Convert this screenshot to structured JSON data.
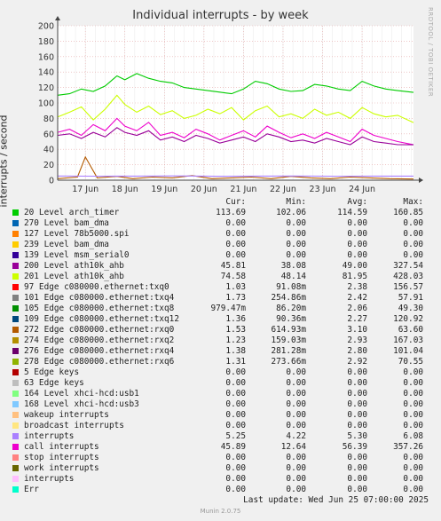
{
  "title": "Individual interrupts - by week",
  "ylabel": "interrupts / second",
  "watermark": "RRDTOOL / TOBI OETIKER",
  "footer": {
    "last_update": "Last update:  Wed Jun 25 07:00:00 2025",
    "version": "Munin 2.0.75"
  },
  "legend_headers": {
    "cur": "Cur:",
    "min": "Min:",
    "avg": "Avg:",
    "max": "Max:"
  },
  "legend": [
    {
      "name": "20 Level arch_timer",
      "color": "#00cc00",
      "cur": "113.69",
      "min": "102.06",
      "avg": "114.59",
      "max": "160.85"
    },
    {
      "name": "270 Level bam_dma",
      "color": "#0066b3",
      "cur": "0.00",
      "min": "0.00",
      "avg": "0.00",
      "max": "0.00"
    },
    {
      "name": "127 Level 78b5000.spi",
      "color": "#ff8000",
      "cur": "0.00",
      "min": "0.00",
      "avg": "0.00",
      "max": "0.00"
    },
    {
      "name": "239 Level bam_dma",
      "color": "#ffcc00",
      "cur": "0.00",
      "min": "0.00",
      "avg": "0.00",
      "max": "0.00"
    },
    {
      "name": "139 Level msm_serial0",
      "color": "#330099",
      "cur": "0.00",
      "min": "0.00",
      "avg": "0.00",
      "max": "0.00"
    },
    {
      "name": "200 Level ath10k_ahb",
      "color": "#990099",
      "cur": "45.81",
      "min": "38.08",
      "avg": "49.00",
      "max": "327.54"
    },
    {
      "name": "201 Level ath10k_ahb",
      "color": "#ccff00",
      "cur": "74.58",
      "min": "48.14",
      "avg": "81.95",
      "max": "428.03"
    },
    {
      "name": "97 Edge c080000.ethernet:txq0",
      "color": "#ff0000",
      "cur": "1.03",
      "min": "91.08m",
      "avg": "2.38",
      "max": "156.57"
    },
    {
      "name": "101 Edge c080000.ethernet:txq4",
      "color": "#808080",
      "cur": "1.73",
      "min": "254.86m",
      "avg": "2.42",
      "max": "57.91"
    },
    {
      "name": "105 Edge c080000.ethernet:txq8",
      "color": "#008f00",
      "cur": "979.47m",
      "min": "86.20m",
      "avg": "2.06",
      "max": "49.30"
    },
    {
      "name": "109 Edge c080000.ethernet:txq12",
      "color": "#00487d",
      "cur": "1.36",
      "min": "90.36m",
      "avg": "2.27",
      "max": "120.92"
    },
    {
      "name": "272 Edge c080000.ethernet:rxq0",
      "color": "#b35a00",
      "cur": "1.53",
      "min": "614.93m",
      "avg": "3.10",
      "max": "63.60"
    },
    {
      "name": "274 Edge c080000.ethernet:rxq2",
      "color": "#b38f00",
      "cur": "1.23",
      "min": "159.03m",
      "avg": "2.93",
      "max": "167.03"
    },
    {
      "name": "276 Edge c080000.ethernet:rxq4",
      "color": "#6b006b",
      "cur": "1.38",
      "min": "281.28m",
      "avg": "2.80",
      "max": "101.04"
    },
    {
      "name": "278 Edge c080000.ethernet:rxq6",
      "color": "#8fb300",
      "cur": "1.31",
      "min": "273.66m",
      "avg": "2.92",
      "max": "70.55"
    },
    {
      "name": "5 Edge keys",
      "color": "#b30000",
      "cur": "0.00",
      "min": "0.00",
      "avg": "0.00",
      "max": "0.00"
    },
    {
      "name": "63 Edge keys",
      "color": "#bebebe",
      "cur": "0.00",
      "min": "0.00",
      "avg": "0.00",
      "max": "0.00"
    },
    {
      "name": "164 Level xhci-hcd:usb1",
      "color": "#80ff80",
      "cur": "0.00",
      "min": "0.00",
      "avg": "0.00",
      "max": "0.00"
    },
    {
      "name": "168 Level xhci-hcd:usb3",
      "color": "#80c9ff",
      "cur": "0.00",
      "min": "0.00",
      "avg": "0.00",
      "max": "0.00"
    },
    {
      "name": "wakeup interrupts",
      "color": "#ffc080",
      "cur": "0.00",
      "min": "0.00",
      "avg": "0.00",
      "max": "0.00"
    },
    {
      "name": "broadcast interrupts",
      "color": "#ffe680",
      "cur": "0.00",
      "min": "0.00",
      "avg": "0.00",
      "max": "0.00"
    },
    {
      "name": "interrupts",
      "color": "#aa80ff",
      "cur": "5.25",
      "min": "4.22",
      "avg": "5.30",
      "max": "6.08"
    },
    {
      "name": "call interrupts",
      "color": "#ee00cc",
      "cur": "45.89",
      "min": "12.64",
      "avg": "56.39",
      "max": "357.26"
    },
    {
      "name": "stop interrupts",
      "color": "#ff8080",
      "cur": "0.00",
      "min": "0.00",
      "avg": "0.00",
      "max": "0.00"
    },
    {
      "name": "work interrupts",
      "color": "#666600",
      "cur": "0.00",
      "min": "0.00",
      "avg": "0.00",
      "max": "0.00"
    },
    {
      "name": "interrupts",
      "color": "#ffbfff",
      "cur": "0.00",
      "min": "0.00",
      "avg": "0.00",
      "max": "0.00"
    },
    {
      "name": "Err",
      "color": "#00ffcc",
      "cur": "0.00",
      "min": "0.00",
      "avg": "0.00",
      "max": "0.00"
    }
  ],
  "chart_data": {
    "type": "line",
    "title": "Individual interrupts - by week",
    "ylabel": "interrupts / second",
    "xlabel": "",
    "ylim": [
      0,
      200
    ],
    "yticks": [
      0,
      20,
      40,
      60,
      80,
      100,
      120,
      140,
      160,
      180,
      200
    ],
    "xticks": [
      "17 Jun",
      "18 Jun",
      "19 Jun",
      "20 Jun",
      "21 Jun",
      "22 Jun",
      "23 Jun",
      "24 Jun"
    ],
    "xlim_days": [
      16.3,
      25.3
    ],
    "grid": true,
    "series": [
      {
        "name": "20 Level arch_timer",
        "color": "#00cc00",
        "x": [
          16.3,
          16.6,
          16.9,
          17.2,
          17.5,
          17.8,
          18.0,
          18.3,
          18.6,
          18.9,
          19.2,
          19.5,
          19.8,
          20.1,
          20.4,
          20.7,
          21.0,
          21.3,
          21.6,
          21.9,
          22.2,
          22.5,
          22.8,
          23.1,
          23.4,
          23.7,
          24.0,
          24.3,
          24.6,
          24.9,
          25.3
        ],
        "y": [
          110,
          112,
          118,
          115,
          122,
          135,
          130,
          138,
          132,
          128,
          126,
          120,
          118,
          116,
          114,
          112,
          118,
          128,
          125,
          118,
          115,
          116,
          124,
          122,
          118,
          116,
          128,
          122,
          118,
          116,
          113.69
        ]
      },
      {
        "name": "201 Level ath10k_ahb",
        "color": "#ccff00",
        "x": [
          16.3,
          16.6,
          16.9,
          17.2,
          17.5,
          17.8,
          18.0,
          18.3,
          18.6,
          18.9,
          19.2,
          19.5,
          19.8,
          20.1,
          20.4,
          20.7,
          21.0,
          21.3,
          21.6,
          21.9,
          22.2,
          22.5,
          22.8,
          23.1,
          23.4,
          23.7,
          24.0,
          24.3,
          24.6,
          24.9,
          25.3
        ],
        "y": [
          82,
          88,
          95,
          78,
          92,
          110,
          98,
          88,
          96,
          85,
          90,
          80,
          84,
          92,
          86,
          94,
          78,
          90,
          96,
          82,
          86,
          80,
          92,
          84,
          88,
          80,
          94,
          86,
          82,
          84,
          74.58
        ]
      },
      {
        "name": "call interrupts",
        "color": "#ee00cc",
        "x": [
          16.3,
          16.6,
          16.9,
          17.2,
          17.5,
          17.8,
          18.0,
          18.3,
          18.6,
          18.9,
          19.2,
          19.5,
          19.8,
          20.1,
          20.4,
          20.7,
          21.0,
          21.3,
          21.6,
          21.9,
          22.2,
          22.5,
          22.8,
          23.1,
          23.4,
          23.7,
          24.0,
          24.3,
          24.6,
          24.9,
          25.3
        ],
        "y": [
          62,
          66,
          58,
          72,
          64,
          80,
          70,
          64,
          75,
          58,
          62,
          55,
          66,
          60,
          52,
          58,
          64,
          56,
          70,
          62,
          55,
          60,
          54,
          62,
          56,
          50,
          66,
          58,
          54,
          50,
          45.89
        ]
      },
      {
        "name": "200 Level ath10k_ahb",
        "color": "#990099",
        "x": [
          16.3,
          16.6,
          16.9,
          17.2,
          17.5,
          17.8,
          18.0,
          18.3,
          18.6,
          18.9,
          19.2,
          19.5,
          19.8,
          20.1,
          20.4,
          20.7,
          21.0,
          21.3,
          21.6,
          21.9,
          22.2,
          22.5,
          22.8,
          23.1,
          23.4,
          23.7,
          24.0,
          24.3,
          24.6,
          24.9,
          25.3
        ],
        "y": [
          58,
          60,
          54,
          62,
          56,
          68,
          62,
          58,
          64,
          52,
          56,
          50,
          58,
          54,
          48,
          52,
          56,
          50,
          60,
          56,
          50,
          52,
          48,
          54,
          50,
          46,
          56,
          50,
          48,
          46,
          45.81
        ]
      },
      {
        "name": "272 Edge c080000.ethernet:rxq0",
        "color": "#b35a00",
        "x": [
          16.3,
          16.8,
          17.0,
          17.3,
          17.8,
          18.2,
          18.7,
          19.2,
          19.7,
          20.2,
          20.7,
          21.2,
          21.7,
          22.2,
          22.7,
          23.2,
          23.7,
          24.2,
          24.7,
          25.3
        ],
        "y": [
          2,
          4,
          30,
          3,
          5,
          2,
          4,
          3,
          6,
          2,
          3,
          4,
          2,
          5,
          3,
          2,
          4,
          3,
          2,
          1.53
        ]
      },
      {
        "name": "interrupts",
        "color": "#aa80ff",
        "x": [
          16.3,
          17.3,
          18.3,
          19.3,
          20.3,
          21.3,
          22.3,
          23.3,
          24.3,
          25.3
        ],
        "y": [
          5.4,
          5.2,
          5.3,
          5.5,
          5.1,
          5.3,
          5.4,
          5.2,
          5.3,
          5.25
        ]
      }
    ]
  }
}
